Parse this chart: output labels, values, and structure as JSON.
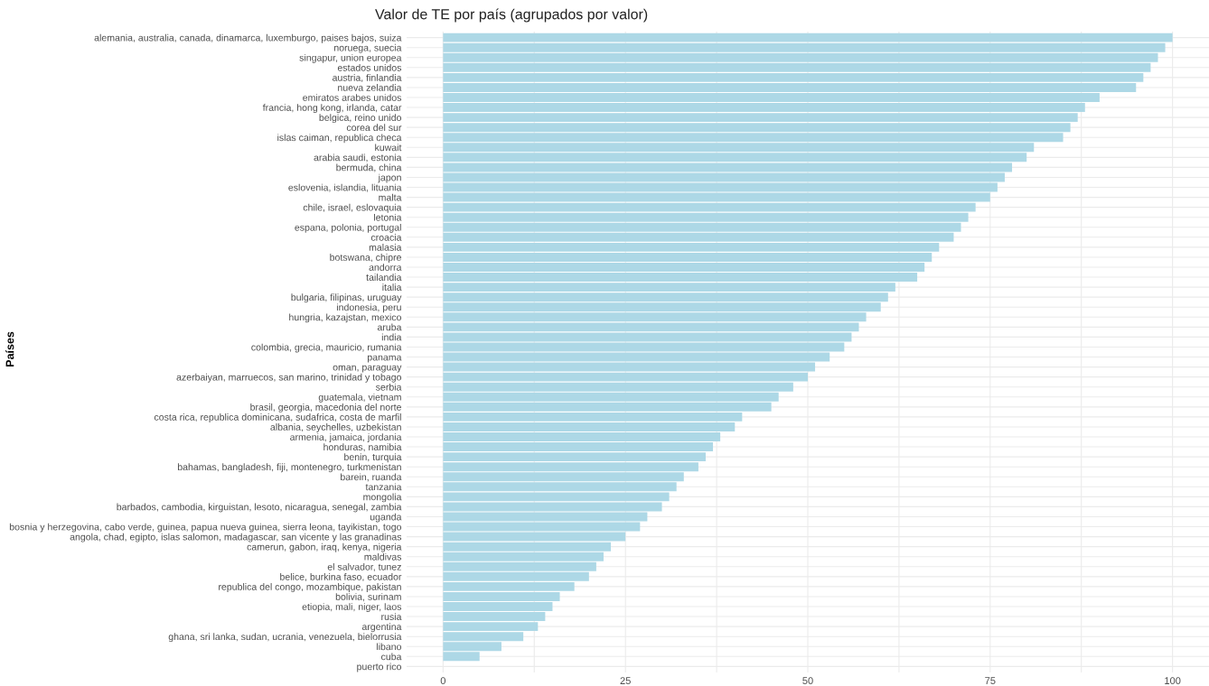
{
  "chart_data": {
    "type": "bar",
    "orientation": "horizontal",
    "title": "Valor de TE por país (agrupados por valor)",
    "ylabel": "Países",
    "categories": [
      "alemania, australia, canada, dinamarca, luxemburgo, paises bajos, suiza",
      "noruega, suecia",
      "singapur, union europea",
      "estados unidos",
      "austria, finlandia",
      "nueva zelandia",
      "emiratos arabes unidos",
      "francia, hong kong, irlanda, catar",
      "belgica, reino unido",
      "corea del sur",
      "islas caiman, republica checa",
      "kuwait",
      "arabia saudi, estonia",
      "bermuda, china",
      "japon",
      "eslovenia, islandia, lituania",
      "malta",
      "chile, israel, eslovaquia",
      "letonia",
      "espana, polonia, portugal",
      "croacia",
      "malasia",
      "botswana, chipre",
      "andorra",
      "tailandia",
      "italia",
      "bulgaria, filipinas, uruguay",
      "indonesia, peru",
      "hungria, kazajstan, mexico",
      "aruba",
      "india",
      "colombia, grecia, mauricio, rumania",
      "panama",
      "oman, paraguay",
      "azerbaiyan, marruecos, san marino, trinidad y tobago",
      "serbia",
      "guatemala, vietnam",
      "brasil, georgia, macedonia del norte",
      "costa rica, republica dominicana, sudafrica, costa de marfil",
      "albania, seychelles, uzbekistan",
      "armenia, jamaica, jordania",
      "honduras, namibia",
      "benin, turquia",
      "bahamas, bangladesh, fiji, montenegro, turkmenistan",
      "barein, ruanda",
      "tanzania",
      "mongolia",
      "barbados, cambodia, kirguistan, lesoto, nicaragua, senegal, zambia",
      "uganda",
      "bosnia y herzegovina, cabo verde, guinea, papua nueva guinea, sierra leona, tayikistan, togo",
      "angola, chad, egipto, islas salomon, madagascar, san vicente y las granadinas",
      "camerun, gabon, iraq, kenya, nigeria",
      "maldivas",
      "el salvador, tunez",
      "belice, burkina faso, ecuador",
      "republica del congo, mozambique, pakistan",
      "bolivia, surinam",
      "etiopia, mali, niger, laos",
      "rusia",
      "argentina",
      "ghana, sri lanka, sudan, ucrania, venezuela, bielorrusia",
      "libano",
      "cuba",
      "puerto rico"
    ],
    "values": [
      100,
      99,
      98,
      97,
      96,
      95,
      90,
      88,
      87,
      86,
      85,
      81,
      80,
      78,
      77,
      76,
      75,
      73,
      72,
      71,
      70,
      68,
      67,
      66,
      65,
      62,
      61,
      60,
      58,
      57,
      56,
      55,
      53,
      51,
      50,
      48,
      46,
      45,
      41,
      40,
      38,
      37,
      36,
      35,
      33,
      32,
      31,
      30,
      28,
      27,
      25,
      23,
      22,
      21,
      20,
      18,
      16,
      15,
      14,
      13,
      11,
      8,
      5,
      0
    ],
    "color": "#add8e6",
    "xlim": [
      -5,
      105
    ],
    "xticks": [
      0,
      {
        "value": 12.5,
        "label": null
      },
      25,
      {
        "value": 37.5,
        "label": null
      },
      50,
      {
        "value": 62.5,
        "label": null
      },
      75,
      {
        "value": 87.5,
        "label": null
      },
      100
    ],
    "grid": true
  }
}
